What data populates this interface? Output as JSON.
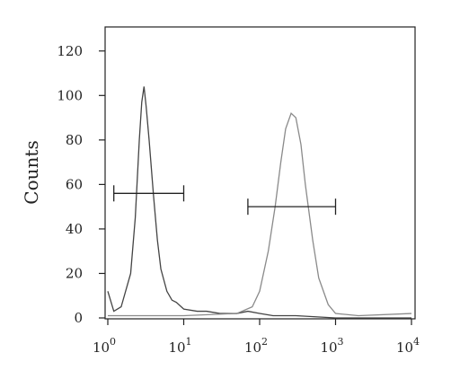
{
  "chart_data": {
    "type": "line",
    "y_label": "Counts",
    "xscale": "log",
    "xlim": [
      1,
      10000
    ],
    "ylim": [
      0,
      130
    ],
    "xticks": [
      {
        "value": 1,
        "label": "10",
        "sup": "0"
      },
      {
        "value": 10,
        "label": "10",
        "sup": "1"
      },
      {
        "value": 100,
        "label": "10",
        "sup": "2"
      },
      {
        "value": 1000,
        "label": "10",
        "sup": "3"
      },
      {
        "value": 10000,
        "label": "10",
        "sup": "4"
      }
    ],
    "yticks": [
      0,
      20,
      40,
      60,
      80,
      100,
      120
    ],
    "series": [
      {
        "color": "#444444",
        "x": [
          1,
          1.2,
          1.5,
          2,
          2.3,
          2.6,
          2.8,
          3,
          3.2,
          3.5,
          4,
          4.5,
          5,
          6,
          7,
          8,
          10,
          15,
          20,
          30,
          50,
          70,
          100,
          150,
          300,
          1000,
          10000
        ],
        "values": [
          12,
          3,
          5,
          20,
          45,
          80,
          97,
          104,
          95,
          80,
          55,
          35,
          22,
          12,
          8,
          7,
          4,
          3,
          3,
          2,
          2,
          3,
          2,
          1,
          1,
          0,
          0
        ]
      },
      {
        "color": "#8a8a8a",
        "x": [
          1,
          10,
          50,
          80,
          100,
          130,
          160,
          190,
          220,
          260,
          300,
          350,
          400,
          500,
          600,
          800,
          1000,
          2000,
          10000
        ],
        "values": [
          1,
          1,
          2,
          5,
          12,
          30,
          50,
          70,
          85,
          92,
          90,
          78,
          60,
          35,
          18,
          6,
          2,
          1,
          2
        ]
      }
    ],
    "gates": [
      {
        "x": [
          1.2,
          10
        ],
        "y": 56
      },
      {
        "x": [
          70,
          1000
        ],
        "y": 50
      }
    ]
  }
}
